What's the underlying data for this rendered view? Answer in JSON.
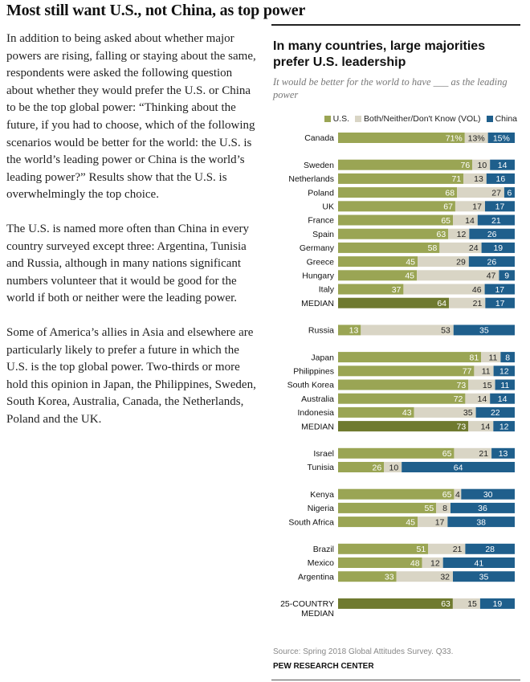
{
  "page": {
    "title": "Most still want U.S., not China, as top power",
    "paragraphs": [
      "In addition to being asked about whether major powers are rising, falling or staying about the same, respondents were asked the following question about whether they would prefer the U.S. or China to be the top global power: “Thinking about the future, if you had to choose, which of the following scenarios would be better for the world: the U.S. is the world’s leading power or China is the world’s leading power?” Results show that the U.S. is overwhelmingly the top choice.",
      "The U.S. is named more often than China in every country surveyed except three: Argentina, Tunisia and Russia, although in many nations significant numbers volunteer that it would be good for the world if both or neither were the leading power.",
      "Some of America’s allies in Asia and elsewhere are particularly likely to prefer a future in which the U.S. is the top global power. Two-thirds or more hold this opinion in Japan, the Philippines, Sweden, South Korea, Australia, Canada, the Netherlands, Poland and the UK."
    ]
  },
  "chart_data": {
    "type": "bar",
    "stacked": true,
    "orientation": "horizontal",
    "title": "In many countries, large majorities prefer U.S. leadership",
    "subtitle": "It would be better for the world to have ___ as the leading power",
    "series": [
      {
        "name": "U.S.",
        "color": "#9aa554"
      },
      {
        "name": "Both/Neither/Don't Know (VOL)",
        "color": "#d9d5c5"
      },
      {
        "name": "China",
        "color": "#1f5f8c"
      }
    ],
    "median_us_color": "#6f7a2f",
    "groups": [
      {
        "rows": [
          {
            "label": "Canada",
            "values": [
              71,
              13,
              15
            ],
            "value_labels": [
              "71%",
              "13%",
              "15%"
            ]
          }
        ]
      },
      {
        "rows": [
          {
            "label": "Sweden",
            "values": [
              76,
              10,
              14
            ]
          },
          {
            "label": "Netherlands",
            "values": [
              71,
              13,
              16
            ]
          },
          {
            "label": "Poland",
            "values": [
              68,
              27,
              6
            ]
          },
          {
            "label": "UK",
            "values": [
              67,
              17,
              17
            ]
          },
          {
            "label": "France",
            "values": [
              65,
              14,
              21
            ]
          },
          {
            "label": "Spain",
            "values": [
              63,
              12,
              26
            ]
          },
          {
            "label": "Germany",
            "values": [
              58,
              24,
              19
            ]
          },
          {
            "label": "Greece",
            "values": [
              45,
              29,
              26
            ]
          },
          {
            "label": "Hungary",
            "values": [
              45,
              47,
              9
            ]
          },
          {
            "label": "Italy",
            "values": [
              37,
              46,
              17
            ]
          },
          {
            "label": "MEDIAN",
            "values": [
              64,
              21,
              17
            ],
            "median": true
          }
        ]
      },
      {
        "rows": [
          {
            "label": "Russia",
            "values": [
              13,
              53,
              35
            ]
          }
        ]
      },
      {
        "rows": [
          {
            "label": "Japan",
            "values": [
              81,
              11,
              8
            ]
          },
          {
            "label": "Philippines",
            "values": [
              77,
              11,
              12
            ]
          },
          {
            "label": "South Korea",
            "values": [
              73,
              15,
              11
            ]
          },
          {
            "label": "Australia",
            "values": [
              72,
              14,
              14
            ]
          },
          {
            "label": "Indonesia",
            "values": [
              43,
              35,
              22
            ]
          },
          {
            "label": "MEDIAN",
            "values": [
              73,
              14,
              12
            ],
            "median": true
          }
        ]
      },
      {
        "rows": [
          {
            "label": "Israel",
            "values": [
              65,
              21,
              13
            ]
          },
          {
            "label": "Tunisia",
            "values": [
              26,
              10,
              64
            ]
          }
        ]
      },
      {
        "rows": [
          {
            "label": "Kenya",
            "values": [
              65,
              4,
              30
            ]
          },
          {
            "label": "Nigeria",
            "values": [
              55,
              8,
              36
            ]
          },
          {
            "label": "South Africa",
            "values": [
              45,
              17,
              38
            ]
          }
        ]
      },
      {
        "rows": [
          {
            "label": "Brazil",
            "values": [
              51,
              21,
              28
            ]
          },
          {
            "label": "Mexico",
            "values": [
              48,
              12,
              41
            ]
          },
          {
            "label": "Argentina",
            "values": [
              33,
              32,
              35
            ]
          }
        ]
      },
      {
        "rows": [
          {
            "label": "25-COUNTRY MEDIAN",
            "label_lines": [
              "25-COUNTRY",
              "MEDIAN"
            ],
            "values": [
              63,
              15,
              19
            ],
            "median": true
          }
        ]
      }
    ],
    "source": "Source: Spring 2018 Global Attitudes Survey. Q33.",
    "organization": "PEW RESEARCH CENTER"
  }
}
